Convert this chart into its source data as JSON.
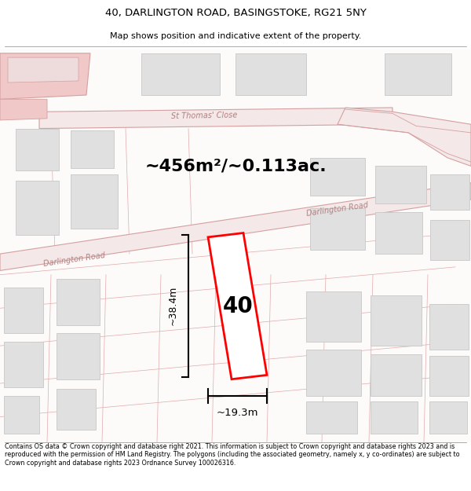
{
  "title_line1": "40, DARLINGTON ROAD, BASINGSTOKE, RG21 5NY",
  "title_line2": "Map shows position and indicative extent of the property.",
  "area_text": "~456m²/~0.113ac.",
  "label_40": "40",
  "dim_height": "~38.4m",
  "dim_width": "~19.3m",
  "footer_text": "Contains OS data © Crown copyright and database right 2021. This information is subject to Crown copyright and database rights 2023 and is reproduced with the permission of HM Land Registry. The polygons (including the associated geometry, namely x, y co-ordinates) are subject to Crown copyright and database rights 2023 Ordnance Survey 100026316.",
  "bg_color": "#ffffff",
  "map_bg": "#fdfafa",
  "road_fill": "#f5e8e8",
  "road_stroke": "#d4a0a0",
  "plot_stroke": "#e0aaaa",
  "block_fill": "#e0e0e0",
  "block_stroke": "#c8c8c8",
  "title_fs": 9.5,
  "subtitle_fs": 8,
  "footer_fs": 5.8
}
